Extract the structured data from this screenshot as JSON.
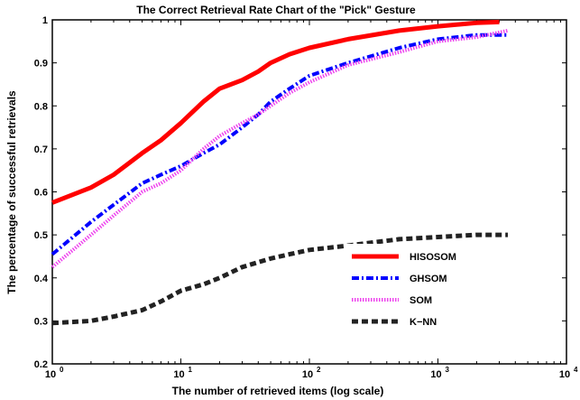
{
  "chart_data": {
    "type": "line",
    "title": "The Correct Retrieval Rate Chart of the \"Pick\" Gesture",
    "xlabel": "The number of retrieved items (log scale)",
    "ylabel": "The percentage of successful retrievals",
    "xscale": "log",
    "xlim": [
      1,
      10000
    ],
    "ylim": [
      0.2,
      1.0
    ],
    "x_ticks": [
      {
        "base": "10",
        "exp": "0",
        "value": 1
      },
      {
        "base": "10",
        "exp": "1",
        "value": 10
      },
      {
        "base": "10",
        "exp": "2",
        "value": 100
      },
      {
        "base": "10",
        "exp": "3",
        "value": 1000
      },
      {
        "base": "10",
        "exp": "4",
        "value": 10000
      }
    ],
    "y_ticks": [
      "0.2",
      "0.3",
      "0.4",
      "0.5",
      "0.6",
      "0.7",
      "0.8",
      "0.9",
      "1"
    ],
    "grid": false,
    "legend_position": "center-right",
    "series": [
      {
        "name": "HISOSOM",
        "color": "#ff0000",
        "style": "solid",
        "x": [
          1,
          2,
          3,
          5,
          7,
          10,
          15,
          20,
          30,
          40,
          50,
          70,
          100,
          200,
          500,
          1000,
          2000,
          3000
        ],
        "y": [
          0.575,
          0.61,
          0.64,
          0.69,
          0.72,
          0.76,
          0.81,
          0.84,
          0.86,
          0.88,
          0.9,
          0.92,
          0.935,
          0.955,
          0.975,
          0.985,
          0.993,
          0.995
        ]
      },
      {
        "name": "GHSOM",
        "color": "#0000ff",
        "style": "dashdot",
        "x": [
          1,
          2,
          3,
          5,
          7,
          10,
          15,
          20,
          30,
          40,
          50,
          70,
          100,
          200,
          500,
          1000,
          2000,
          3500
        ],
        "y": [
          0.455,
          0.53,
          0.57,
          0.62,
          0.64,
          0.66,
          0.69,
          0.71,
          0.75,
          0.78,
          0.81,
          0.84,
          0.87,
          0.9,
          0.935,
          0.955,
          0.965,
          0.965
        ]
      },
      {
        "name": "SOM",
        "color": "#ee44ee",
        "style": "dotted",
        "x": [
          1,
          2,
          3,
          5,
          7,
          10,
          15,
          20,
          30,
          40,
          50,
          70,
          100,
          200,
          500,
          1000,
          2000,
          3500
        ],
        "y": [
          0.425,
          0.5,
          0.545,
          0.6,
          0.62,
          0.65,
          0.7,
          0.73,
          0.76,
          0.78,
          0.8,
          0.83,
          0.855,
          0.895,
          0.925,
          0.95,
          0.96,
          0.975
        ]
      },
      {
        "name": "K−NN",
        "color": "#222222",
        "style": "dashed",
        "x": [
          1,
          2,
          3,
          5,
          7,
          10,
          15,
          20,
          30,
          50,
          70,
          100,
          200,
          500,
          1000,
          2000,
          3500
        ],
        "y": [
          0.295,
          0.3,
          0.31,
          0.325,
          0.345,
          0.37,
          0.385,
          0.4,
          0.425,
          0.445,
          0.455,
          0.465,
          0.475,
          0.49,
          0.495,
          0.5,
          0.5
        ]
      }
    ]
  }
}
